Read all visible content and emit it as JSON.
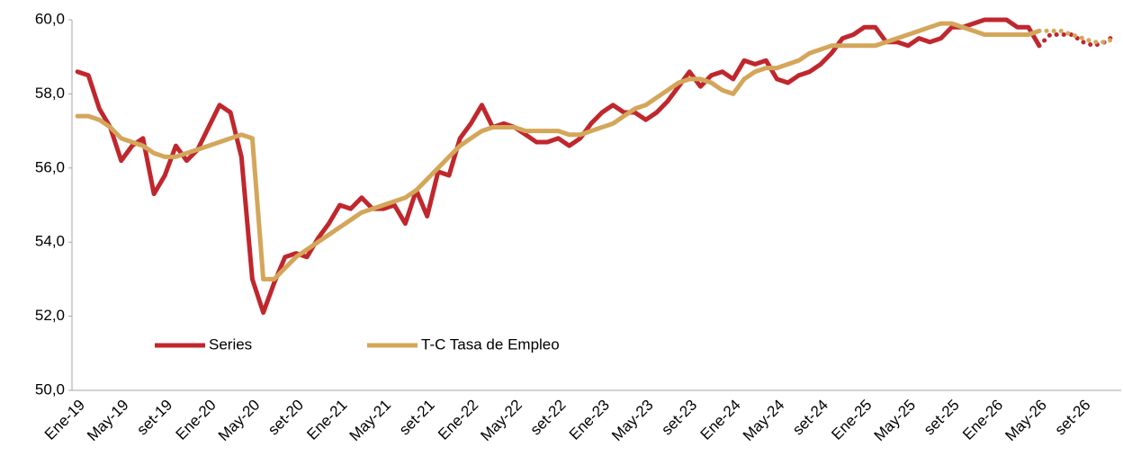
{
  "chart_data": {
    "type": "line",
    "categories": [
      "Ene-19",
      null,
      null,
      null,
      "May-19",
      null,
      null,
      null,
      "set-19",
      null,
      null,
      null,
      "Ene-20",
      null,
      null,
      null,
      "May-20",
      null,
      null,
      null,
      "set-20",
      null,
      null,
      null,
      "Ene-21",
      null,
      null,
      null,
      "May-21",
      null,
      null,
      null,
      "set-21",
      null,
      null,
      null,
      "Ene-22",
      null,
      null,
      null,
      "May-22",
      null,
      null,
      null,
      "set-22",
      null,
      null,
      null,
      "Ene-23",
      null,
      null,
      null,
      "May-23",
      null,
      null,
      null,
      "set-23",
      null,
      null,
      null,
      "Ene-24",
      null,
      null,
      null,
      "May-24",
      null,
      null,
      null,
      "set-24",
      null,
      null,
      null,
      "Ene-25",
      null,
      null,
      null,
      "May-25",
      null,
      null,
      null,
      "set-25",
      null,
      null,
      null,
      "Ene-26",
      null,
      null,
      null,
      "May-26",
      null,
      null,
      null,
      "set-26",
      null,
      null,
      null
    ],
    "series": [
      {
        "name": "Series",
        "color": "#c0272d",
        "dashed_from": 88,
        "values": [
          58.6,
          58.5,
          57.6,
          57.1,
          56.2,
          56.6,
          56.8,
          55.3,
          55.8,
          56.6,
          56.2,
          56.5,
          57.1,
          57.7,
          57.5,
          56.3,
          53.0,
          52.1,
          52.9,
          53.6,
          53.7,
          53.6,
          54.1,
          54.5,
          55.0,
          54.9,
          55.2,
          54.9,
          54.9,
          55.0,
          54.5,
          55.4,
          54.7,
          55.9,
          55.8,
          56.8,
          57.2,
          57.7,
          57.1,
          57.2,
          57.1,
          56.9,
          56.7,
          56.7,
          56.8,
          56.6,
          56.8,
          57.2,
          57.5,
          57.7,
          57.5,
          57.5,
          57.3,
          57.5,
          57.8,
          58.2,
          58.6,
          58.2,
          58.5,
          58.6,
          58.4,
          58.9,
          58.8,
          58.9,
          58.4,
          58.3,
          58.5,
          58.6,
          58.8,
          59.1,
          59.5,
          59.6,
          59.8,
          59.8,
          59.4,
          59.4,
          59.3,
          59.5,
          59.4,
          59.5,
          59.8,
          59.8,
          59.9,
          60.0,
          60.0,
          60.0,
          59.8,
          59.8,
          59.3,
          59.6,
          59.6,
          59.6,
          59.4,
          59.3,
          59.4,
          59.6
        ]
      },
      {
        "name": "T-C Tasa de Empleo",
        "color": "#d4a65a",
        "dashed_from": 88,
        "values": [
          57.4,
          57.4,
          57.3,
          57.1,
          56.8,
          56.7,
          56.6,
          56.4,
          56.3,
          56.3,
          56.4,
          56.5,
          56.6,
          56.7,
          56.8,
          56.9,
          56.8,
          53.0,
          53.0,
          53.3,
          53.6,
          53.8,
          54.0,
          54.2,
          54.4,
          54.6,
          54.8,
          54.9,
          55.0,
          55.1,
          55.2,
          55.4,
          55.7,
          56.0,
          56.3,
          56.6,
          56.8,
          57.0,
          57.1,
          57.1,
          57.1,
          57.0,
          57.0,
          57.0,
          57.0,
          56.9,
          56.9,
          57.0,
          57.1,
          57.2,
          57.4,
          57.6,
          57.7,
          57.9,
          58.1,
          58.3,
          58.4,
          58.4,
          58.3,
          58.1,
          58.0,
          58.4,
          58.6,
          58.7,
          58.7,
          58.8,
          58.9,
          59.1,
          59.2,
          59.3,
          59.3,
          59.3,
          59.3,
          59.3,
          59.4,
          59.5,
          59.6,
          59.7,
          59.8,
          59.9,
          59.9,
          59.8,
          59.7,
          59.6,
          59.6,
          59.6,
          59.6,
          59.6,
          59.7,
          59.7,
          59.7,
          59.6,
          59.5,
          59.4,
          59.4,
          59.5
        ]
      }
    ],
    "ylim": [
      50,
      60
    ],
    "yticks": [
      {
        "value": 50,
        "label": "50,0"
      },
      {
        "value": 52,
        "label": "52,0"
      },
      {
        "value": 54,
        "label": "54,0"
      },
      {
        "value": 56,
        "label": "56,0"
      },
      {
        "value": 58,
        "label": "58,0"
      },
      {
        "value": 60,
        "label": "60,0"
      }
    ],
    "grid": false,
    "legend": "lower left"
  }
}
